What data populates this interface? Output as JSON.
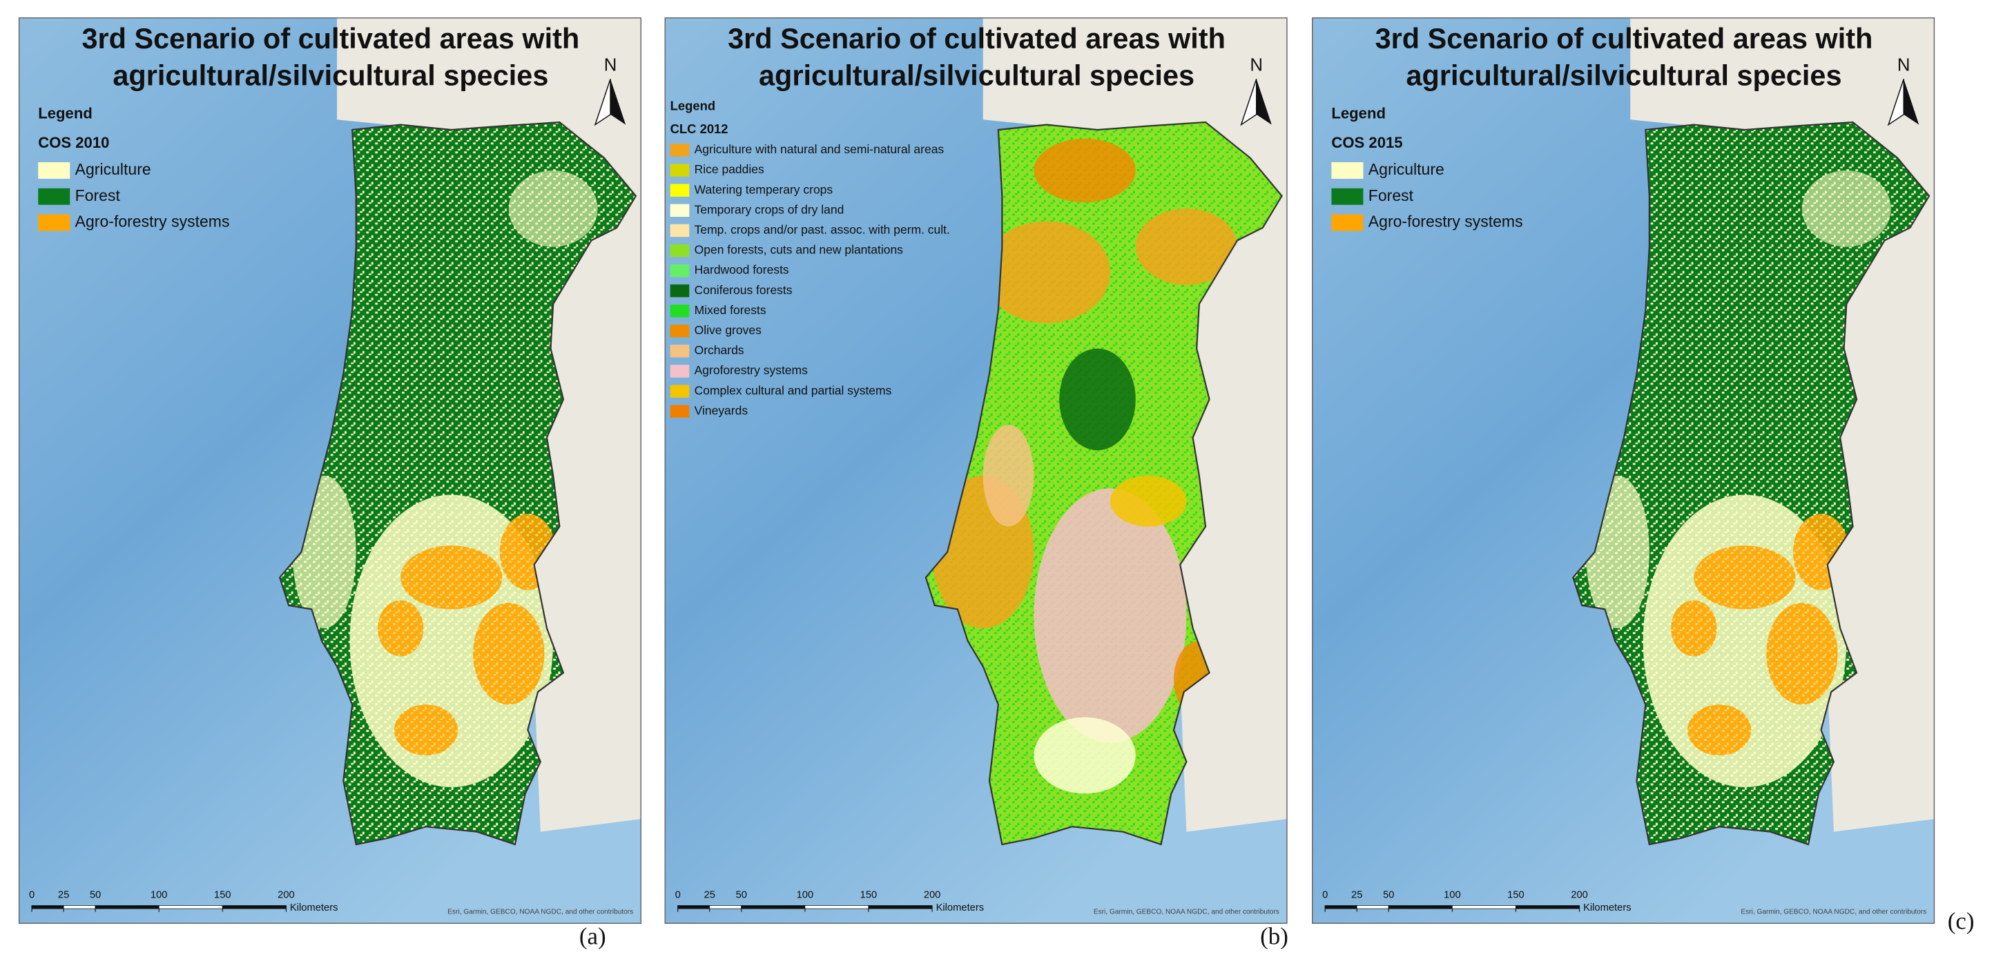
{
  "panels": [
    {
      "title": [
        "3rd Scenario of cultivated areas with",
        "agricultural/silvicultural species"
      ],
      "legend_heading": "Legend",
      "legend_title": "COS 2010",
      "items": [
        {
          "label": "Agriculture",
          "color": "#ffffc4"
        },
        {
          "label": "Forest",
          "color": "#0b7a1c"
        },
        {
          "label": "Agro-forestry systems",
          "color": "#ffa500"
        }
      ],
      "north": "N",
      "scale": {
        "ticks": [
          0,
          25,
          50,
          100,
          150,
          200
        ],
        "unit": "Kilometers"
      },
      "attribution": "Esri, Garmin, GEBCO, NOAA NGDC, and other contributors",
      "letter": "(a)"
    },
    {
      "title": [
        "3rd Scenario of cultivated areas with",
        "agricultural/silvicultural species"
      ],
      "legend_heading": "Legend",
      "legend_title": "CLC 2012",
      "items": [
        {
          "label": "Agriculture with natural and semi-natural areas",
          "color": "#f2a31c"
        },
        {
          "label": "Rice paddies",
          "color": "#d6d600"
        },
        {
          "label": "Watering temperary crops",
          "color": "#ffff00"
        },
        {
          "label": "Temporary crops of dry land",
          "color": "#ffffd2"
        },
        {
          "label": "Temp. crops and/or past. assoc. with perm. cult.",
          "color": "#ffe4a6"
        },
        {
          "label": "Open forests, cuts and new plantations",
          "color": "#8ee024"
        },
        {
          "label": "Hardwood forests",
          "color": "#66ee66"
        },
        {
          "label": "Coniferous forests",
          "color": "#0a6a12"
        },
        {
          "label": "Mixed forests",
          "color": "#22dd22"
        },
        {
          "label": "Olive groves",
          "color": "#f08c00"
        },
        {
          "label": "Orchards",
          "color": "#f5c282"
        },
        {
          "label": "Agroforestry systems",
          "color": "#f5c0c8"
        },
        {
          "label": "Complex cultural and partial systems",
          "color": "#f5c400"
        },
        {
          "label": "Vineyards",
          "color": "#f07f00"
        }
      ],
      "north": "N",
      "scale": {
        "ticks": [
          0,
          25,
          50,
          100,
          150,
          200
        ],
        "unit": "Kilometers"
      },
      "attribution": "Esri, Garmin, GEBCO, NOAA NGDC, and other contributors",
      "letter": "(b)"
    },
    {
      "title": [
        "3rd Scenario of cultivated areas with",
        "agricultural/silvicultural species"
      ],
      "legend_heading": "Legend",
      "legend_title": "COS 2015",
      "items": [
        {
          "label": "Agriculture",
          "color": "#ffffc4"
        },
        {
          "label": "Forest",
          "color": "#0b7a1c"
        },
        {
          "label": "Agro-forestry systems",
          "color": "#ffa500"
        }
      ],
      "north": "N",
      "scale": {
        "ticks": [
          0,
          25,
          50,
          100,
          150,
          200
        ],
        "unit": "Kilometers"
      },
      "attribution": "Esri, Garmin, GEBCO, NOAA NGDC, and other contributors",
      "letter": "(c)"
    }
  ]
}
